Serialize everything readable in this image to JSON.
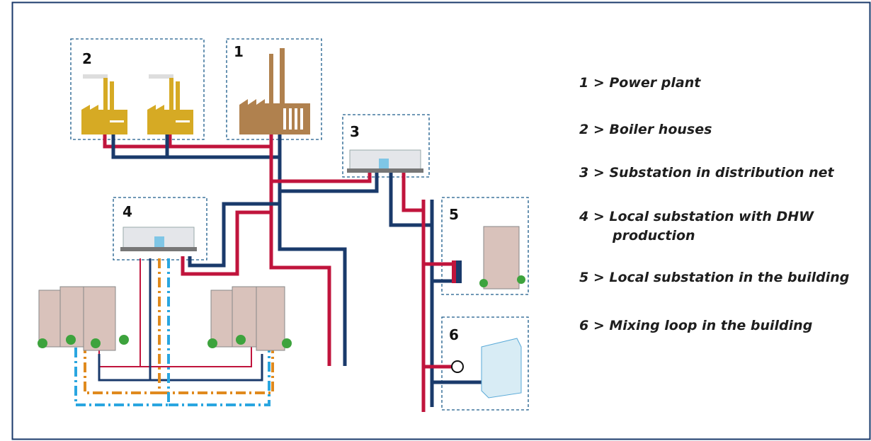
{
  "box_labels": [
    "1",
    "2",
    "3",
    "4",
    "5",
    "6"
  ],
  "legend": [
    "1 > Power plant",
    "2 > Boiler houses",
    "3 > Substation in distribution net",
    "4 > Local substation with DHW production",
    "5 > Local substation in the building",
    "6 > Mixing loop in the building"
  ]
}
